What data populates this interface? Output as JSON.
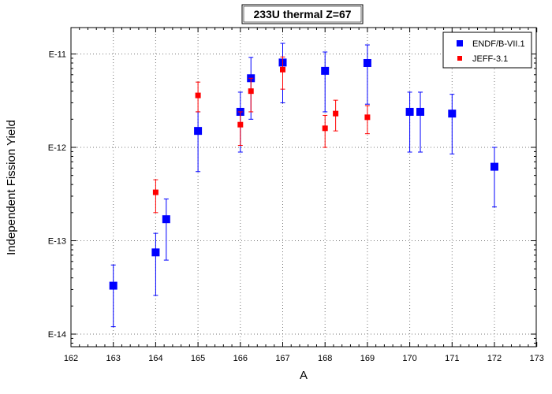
{
  "chart_data": {
    "type": "scatter",
    "title": "233U thermal Z=67",
    "xlabel": "A",
    "ylabel": "Independent Fission Yield",
    "xlim": [
      162,
      173
    ],
    "ylim": [
      8e-15,
      3e-11
    ],
    "yscale": "log",
    "x_ticks": [
      "162",
      "163",
      "164",
      "165",
      "166",
      "167",
      "168",
      "169",
      "170",
      "171",
      "172",
      "173"
    ],
    "y_tick_labels": [
      {
        "value": 1e-11,
        "label": "E-11"
      },
      {
        "value": 1e-12,
        "label": "E-12"
      },
      {
        "value": 1e-13,
        "label": "E-13"
      },
      {
        "value": 1e-14,
        "label": "E-14"
      }
    ],
    "grid": true,
    "legend_position": "top-right",
    "series": [
      {
        "name": "ENDF/B-VII.1",
        "color": "#0000ff",
        "marker": "square",
        "points": [
          {
            "x": 163.0,
            "y": 3.3e-14,
            "ylo": 1.2e-14,
            "yhi": 5.5e-14
          },
          {
            "x": 164.0,
            "y": 7.5e-14,
            "ylo": 2.6e-14,
            "yhi": 1.2e-13
          },
          {
            "x": 164.25,
            "y": 1.7e-13,
            "ylo": 6.2e-14,
            "yhi": 2.8e-13
          },
          {
            "x": 165.0,
            "y": 1.5e-12,
            "ylo": 5.5e-13,
            "yhi": 2.4e-12
          },
          {
            "x": 166.0,
            "y": 2.4e-12,
            "ylo": 8.9e-13,
            "yhi": 3.9e-12
          },
          {
            "x": 166.25,
            "y": 5.5e-12,
            "ylo": 2e-12,
            "yhi": 9.2e-12
          },
          {
            "x": 167.0,
            "y": 8.1e-12,
            "ylo": 3e-12,
            "yhi": 1.3e-11
          },
          {
            "x": 168.0,
            "y": 6.6e-12,
            "ylo": 2.4e-12,
            "yhi": 1.05e-11
          },
          {
            "x": 169.0,
            "y": 8e-12,
            "ylo": 2.9e-12,
            "yhi": 1.25e-11
          },
          {
            "x": 170.0,
            "y": 2.4e-12,
            "ylo": 8.9e-13,
            "yhi": 3.9e-12
          },
          {
            "x": 170.25,
            "y": 2.4e-12,
            "ylo": 8.9e-13,
            "yhi": 3.9e-12
          },
          {
            "x": 171.0,
            "y": 2.3e-12,
            "ylo": 8.5e-13,
            "yhi": 3.7e-12
          },
          {
            "x": 172.0,
            "y": 6.2e-13,
            "ylo": 2.3e-13,
            "yhi": 1e-12
          }
        ]
      },
      {
        "name": "JEFF-3.1",
        "color": "#ff0000",
        "marker": "square",
        "points": [
          {
            "x": 164.0,
            "y": 3.3e-13,
            "ylo": 2e-13,
            "yhi": 4.5e-13
          },
          {
            "x": 165.0,
            "y": 3.6e-12,
            "ylo": 2.4e-12,
            "yhi": 5e-12
          },
          {
            "x": 166.0,
            "y": 1.75e-12,
            "ylo": 1.05e-12,
            "yhi": 2.4e-12
          },
          {
            "x": 166.25,
            "y": 4e-12,
            "ylo": 2.4e-12,
            "yhi": 5.5e-12
          },
          {
            "x": 167.0,
            "y": 6.8e-12,
            "ylo": 4.2e-12,
            "yhi": 9.3e-12
          },
          {
            "x": 168.0,
            "y": 1.6e-12,
            "ylo": 1e-12,
            "yhi": 2.2e-12
          },
          {
            "x": 168.25,
            "y": 2.3e-12,
            "ylo": 1.5e-12,
            "yhi": 3.2e-12
          },
          {
            "x": 169.0,
            "y": 2.1e-12,
            "ylo": 1.4e-12,
            "yhi": 2.8e-12
          }
        ]
      }
    ]
  }
}
